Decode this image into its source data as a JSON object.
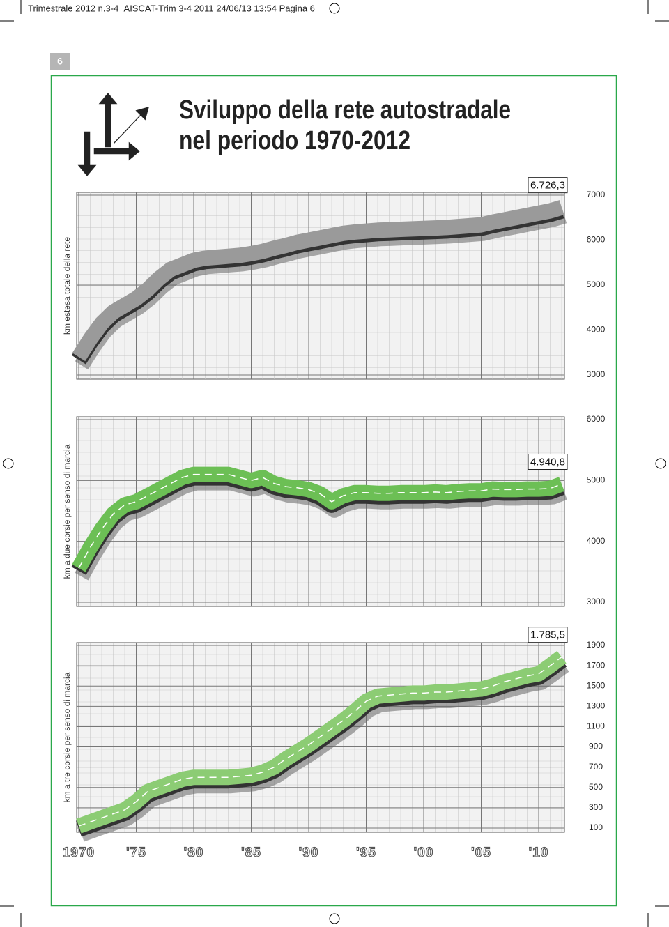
{
  "header": {
    "slug": "Trimestrale 2012 n.3-4_AISCAT-Trim 3-4 2011  24/06/13  13:54  Pagina 6",
    "page_number": "6",
    "title_lines": [
      "Sviluppo della rete autostradale",
      "nel periodo 1970-2012"
    ]
  },
  "chart_data": [
    {
      "type": "line",
      "y_label": "km   estesa   totale   della   rete",
      "x": [
        1970,
        1971,
        1972,
        1973,
        1974,
        1975,
        1976,
        1977,
        1978,
        1979,
        1980,
        1981,
        1982,
        1983,
        1984,
        1985,
        1986,
        1987,
        1988,
        1989,
        1990,
        1991,
        1992,
        1993,
        1994,
        1995,
        1996,
        1997,
        1998,
        1999,
        2000,
        2001,
        2002,
        2003,
        2004,
        2005,
        2006,
        2007,
        2008,
        2009,
        2010,
        2011,
        2012
      ],
      "series": [
        {
          "color": "#9a9a9a",
          "values": [
            3400,
            3800,
            4150,
            4400,
            4550,
            4700,
            4900,
            5150,
            5350,
            5450,
            5550,
            5600,
            5620,
            5640,
            5660,
            5700,
            5750,
            5820,
            5880,
            5950,
            6000,
            6050,
            6100,
            6150,
            6180,
            6200,
            6220,
            6230,
            6240,
            6250,
            6260,
            6270,
            6280,
            6300,
            6320,
            6340,
            6400,
            6450,
            6500,
            6550,
            6600,
            6650,
            6726.3
          ],
          "value_labels": [
            null,
            null,
            null,
            null,
            null,
            null,
            null,
            null,
            null,
            null,
            null,
            null,
            null,
            null,
            null,
            null,
            null,
            null,
            null,
            null,
            null,
            null,
            null,
            null,
            null,
            null,
            null,
            null,
            null,
            null,
            null,
            null,
            null,
            null,
            null,
            null,
            null,
            null,
            null,
            null,
            null,
            null,
            "6.726,3"
          ]
        }
      ],
      "xlim": [
        1970,
        2012
      ],
      "xticks": [
        1970,
        1975,
        1980,
        1985,
        1990,
        1995,
        2000,
        2005,
        2010
      ],
      "ylim": [
        3000,
        7000
      ],
      "yticks": [
        3000,
        4000,
        5000,
        6000,
        7000
      ],
      "grid": true,
      "dashed_center": false
    },
    {
      "type": "line",
      "y_label": "km   a   due   corsie   per   senso   di   marcia",
      "x": [
        1970,
        1971,
        1972,
        1973,
        1974,
        1975,
        1976,
        1977,
        1978,
        1979,
        1980,
        1981,
        1982,
        1983,
        1984,
        1985,
        1986,
        1987,
        1988,
        1989,
        1990,
        1991,
        1992,
        1993,
        1994,
        1995,
        1996,
        1997,
        1998,
        1999,
        2000,
        2001,
        2002,
        2003,
        2004,
        2005,
        2006,
        2007,
        2008,
        2009,
        2010,
        2011,
        2012
      ],
      "series": [
        {
          "color": "#6cbf55",
          "values": [
            3560,
            3900,
            4200,
            4450,
            4600,
            4650,
            4750,
            4850,
            4950,
            5050,
            5100,
            5100,
            5100,
            5100,
            5050,
            5000,
            5050,
            4950,
            4900,
            4880,
            4850,
            4780,
            4650,
            4750,
            4800,
            4800,
            4790,
            4790,
            4800,
            4800,
            4800,
            4810,
            4800,
            4820,
            4830,
            4830,
            4860,
            4850,
            4850,
            4860,
            4860,
            4870,
            4940.8
          ],
          "value_labels": [
            null,
            null,
            null,
            null,
            null,
            null,
            null,
            null,
            null,
            null,
            null,
            null,
            null,
            null,
            null,
            null,
            null,
            null,
            null,
            null,
            null,
            null,
            null,
            null,
            null,
            null,
            null,
            null,
            null,
            null,
            null,
            null,
            null,
            null,
            null,
            null,
            null,
            null,
            null,
            null,
            null,
            null,
            "4.940,8"
          ]
        }
      ],
      "xlim": [
        1970,
        2012
      ],
      "xticks": [
        1970,
        1975,
        1980,
        1985,
        1990,
        1995,
        2000,
        2005,
        2010
      ],
      "ylim": [
        3000,
        6000
      ],
      "yticks": [
        3000,
        4000,
        5000,
        6000
      ],
      "grid": true,
      "dashed_center": true
    },
    {
      "type": "line",
      "y_label": "km   a   tre   corsie   per   senso   di   marcia",
      "x": [
        1970,
        1971,
        1972,
        1973,
        1974,
        1975,
        1976,
        1977,
        1978,
        1979,
        1980,
        1981,
        1982,
        1983,
        1984,
        1985,
        1986,
        1987,
        1988,
        1989,
        1990,
        1991,
        1992,
        1993,
        1994,
        1995,
        1996,
        1997,
        1998,
        1999,
        2000,
        2001,
        2002,
        2003,
        2004,
        2005,
        2006,
        2007,
        2008,
        2009,
        2010,
        2011,
        2012
      ],
      "series": [
        {
          "color": "#8ccc74",
          "values": [
            120,
            160,
            200,
            240,
            280,
            360,
            460,
            500,
            540,
            580,
            600,
            600,
            600,
            600,
            610,
            620,
            650,
            700,
            780,
            850,
            920,
            1000,
            1080,
            1160,
            1250,
            1350,
            1400,
            1410,
            1420,
            1430,
            1430,
            1440,
            1440,
            1450,
            1460,
            1470,
            1500,
            1540,
            1570,
            1600,
            1620,
            1700,
            1785.5
          ],
          "value_labels": [
            null,
            null,
            null,
            null,
            null,
            null,
            null,
            null,
            null,
            null,
            null,
            null,
            null,
            null,
            null,
            null,
            null,
            null,
            null,
            null,
            null,
            null,
            null,
            null,
            null,
            null,
            null,
            null,
            null,
            null,
            null,
            null,
            null,
            null,
            null,
            null,
            null,
            null,
            null,
            null,
            null,
            null,
            "1.785,5"
          ]
        }
      ],
      "xlim": [
        1970,
        2012
      ],
      "xticks": [
        1970,
        {
          "value": 1975,
          "label": "'75"
        },
        {
          "value": 1980,
          "label": "'80"
        },
        {
          "value": 1985,
          "label": "'85"
        },
        {
          "value": 1990,
          "label": "'90"
        },
        {
          "value": 1995,
          "label": "'95"
        },
        {
          "value": 2000,
          "label": "'00"
        },
        {
          "value": 2005,
          "label": "'05"
        },
        {
          "value": 2010,
          "label": "'10"
        }
      ],
      "ylim": [
        100,
        1900
      ],
      "yticks": [
        100,
        300,
        500,
        700,
        900,
        1100,
        1300,
        1500,
        1700,
        1900
      ],
      "grid": true,
      "dashed_center": true
    }
  ]
}
